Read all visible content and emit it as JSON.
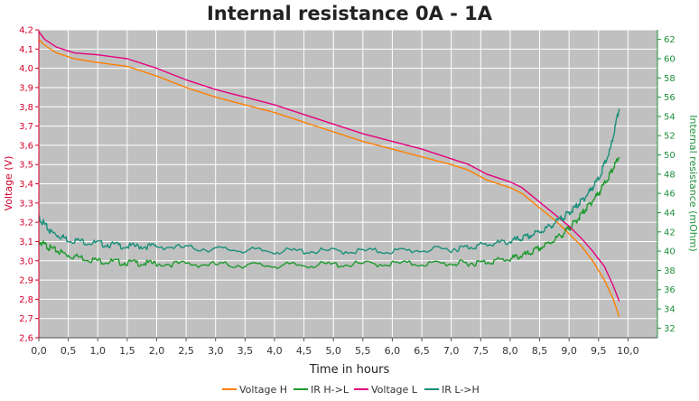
{
  "chart_data": {
    "type": "line",
    "title": "Internal resistance  0A - 1A",
    "xlabel": "Time in hours",
    "ylabel_left": "Voltage (V)",
    "ylabel_right": "Internal resistance (mOhm)",
    "xlim": [
      0,
      10.5
    ],
    "ylim_left": [
      2.6,
      4.2
    ],
    "ylim_right": [
      31,
      63
    ],
    "x_ticks": [
      "0,0",
      "0,5",
      "1,0",
      "1,5",
      "2,0",
      "2,5",
      "3,0",
      "3,5",
      "4,0",
      "4,5",
      "5,0",
      "5,5",
      "6,0",
      "6,5",
      "7,0",
      "7,5",
      "8,0",
      "8,5",
      "9,0",
      "9,5",
      "10,0"
    ],
    "y_left_ticks": [
      "2,6",
      "2,7",
      "2,8",
      "2,9",
      "3,0",
      "3,1",
      "3,2",
      "3,3",
      "3,4",
      "3,5",
      "3,6",
      "3,7",
      "3,8",
      "3,9",
      "4,0",
      "4,1",
      "4,2"
    ],
    "y_right_ticks": [
      "32",
      "34",
      "36",
      "38",
      "40",
      "42",
      "44",
      "46",
      "48",
      "50",
      "52",
      "54",
      "56",
      "58",
      "60",
      "62"
    ],
    "grid": true,
    "legend_position": "bottom",
    "series": [
      {
        "name": "Voltage H",
        "axis": "left",
        "color": "#ff7f00",
        "x": [
          0,
          0.1,
          0.3,
          0.6,
          1.0,
          1.5,
          2.0,
          2.5,
          3.0,
          3.5,
          4.0,
          4.5,
          5.0,
          5.5,
          6.0,
          6.5,
          7.0,
          7.3,
          7.6,
          8.0,
          8.2,
          8.4,
          8.6,
          8.8,
          9.0,
          9.2,
          9.4,
          9.6,
          9.75,
          9.85
        ],
        "y": [
          4.15,
          4.12,
          4.08,
          4.05,
          4.03,
          4.01,
          3.96,
          3.9,
          3.85,
          3.81,
          3.77,
          3.72,
          3.67,
          3.62,
          3.58,
          3.54,
          3.5,
          3.47,
          3.42,
          3.38,
          3.35,
          3.3,
          3.25,
          3.2,
          3.14,
          3.08,
          3.0,
          2.9,
          2.8,
          2.71
        ]
      },
      {
        "name": "IR H->L",
        "axis": "right",
        "color": "#1e9a2e",
        "x": [
          0,
          0.2,
          0.5,
          1.0,
          1.5,
          2.0,
          3.0,
          4.0,
          5.0,
          6.0,
          7.0,
          7.5,
          8.0,
          8.3,
          8.6,
          8.9,
          9.1,
          9.3,
          9.5,
          9.7,
          9.85
        ],
        "y": [
          41.0,
          40.3,
          39.6,
          39.0,
          38.8,
          38.7,
          38.6,
          38.5,
          38.6,
          38.7,
          38.7,
          38.8,
          39.2,
          39.7,
          40.6,
          41.8,
          43.0,
          44.5,
          46.0,
          48.0,
          49.8
        ]
      },
      {
        "name": "Voltage L",
        "axis": "left",
        "color": "#e5007e",
        "x": [
          0,
          0.1,
          0.3,
          0.6,
          1.0,
          1.5,
          2.0,
          2.5,
          3.0,
          3.5,
          4.0,
          4.5,
          5.0,
          5.5,
          6.0,
          6.5,
          7.0,
          7.3,
          7.6,
          8.0,
          8.2,
          8.4,
          8.6,
          8.8,
          9.0,
          9.2,
          9.4,
          9.6,
          9.75,
          9.85
        ],
        "y": [
          4.19,
          4.15,
          4.11,
          4.08,
          4.07,
          4.05,
          4.0,
          3.94,
          3.89,
          3.85,
          3.81,
          3.76,
          3.71,
          3.66,
          3.62,
          3.58,
          3.53,
          3.5,
          3.45,
          3.41,
          3.38,
          3.33,
          3.28,
          3.23,
          3.18,
          3.12,
          3.05,
          2.97,
          2.87,
          2.79
        ]
      },
      {
        "name": "IR L->H",
        "axis": "right",
        "color": "#19907a",
        "x": [
          0,
          0.2,
          0.5,
          1.0,
          1.5,
          2.0,
          3.0,
          4.0,
          5.0,
          6.0,
          7.0,
          7.5,
          8.0,
          8.3,
          8.6,
          8.9,
          9.1,
          9.3,
          9.5,
          9.7,
          9.85
        ],
        "y": [
          43.5,
          42.0,
          41.2,
          40.8,
          40.5,
          40.5,
          40.2,
          40.0,
          40.0,
          40.0,
          40.2,
          40.6,
          41.0,
          41.5,
          42.3,
          43.5,
          44.5,
          45.8,
          47.5,
          50.5,
          54.8
        ]
      }
    ]
  }
}
